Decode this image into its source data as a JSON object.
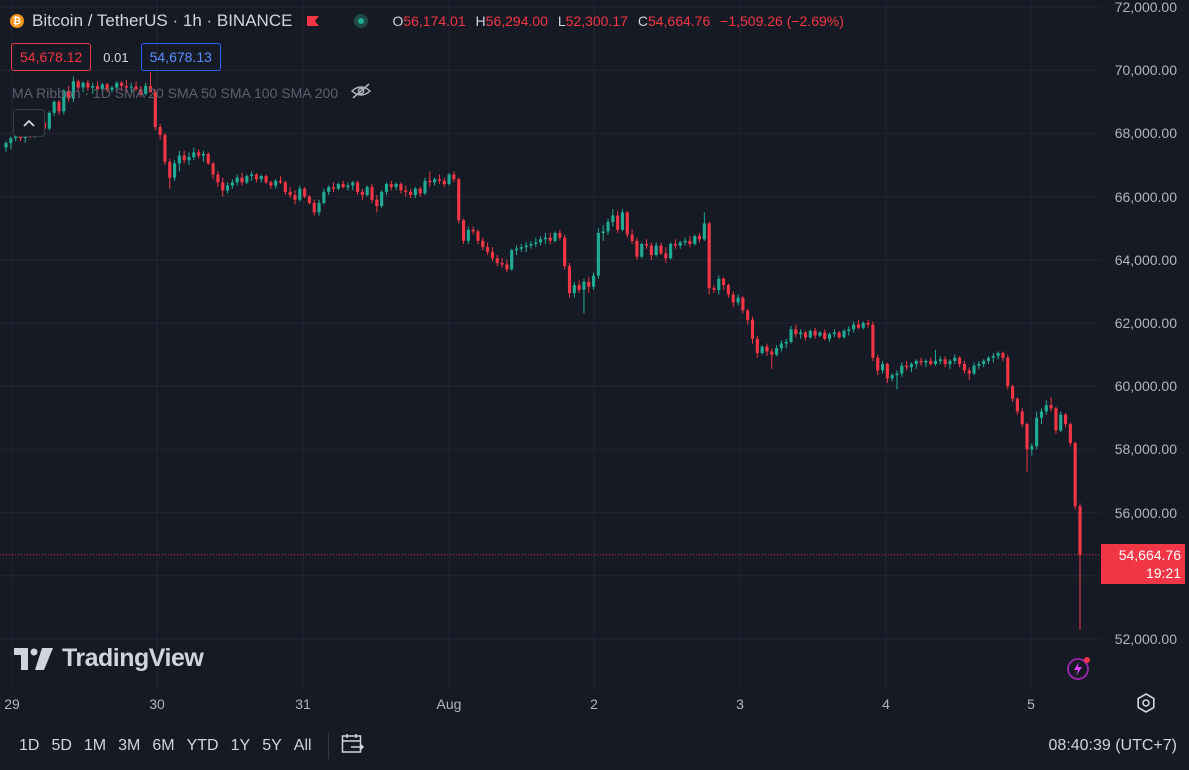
{
  "header": {
    "symbol_title": "Bitcoin / TetherUS · 1h · BINANCE",
    "open_label": "O",
    "open": "56,174.01",
    "high_label": "H",
    "high": "56,294.00",
    "low_label": "L",
    "low": "52,300.17",
    "close_label": "C",
    "close": "54,664.76",
    "change": "−1,509.26 (−2.69%)"
  },
  "trade": {
    "sell_price": "54,678.12",
    "spread": "0.01",
    "buy_price": "54,678.13"
  },
  "indicators": {
    "text": "MA Ribbon · 1D SMA 20 SMA 50 SMA 100 SMA 200"
  },
  "watermark": {
    "brand": "TradingView"
  },
  "current_price": {
    "value": "54,664.76",
    "countdown": "19:21"
  },
  "y_axis_labels": [
    "72,000.00",
    "70,000.00",
    "68,000.00",
    "66,000.00",
    "64,000.00",
    "62,000.00",
    "60,000.00",
    "58,000.00",
    "56,000.00",
    "52,000.00"
  ],
  "x_axis_labels": [
    "29",
    "30",
    "31",
    "Aug",
    "2",
    "3",
    "4",
    "5"
  ],
  "range_buttons": [
    "1D",
    "5D",
    "1M",
    "3M",
    "6M",
    "YTD",
    "1Y",
    "5Y",
    "All"
  ],
  "clock": "08:40:39 (UTC+7)",
  "colors": {
    "up": "#22ab94",
    "down": "#f23645",
    "background": "#161a25",
    "grid": "#232632"
  },
  "chart_data": {
    "type": "candlestick",
    "title": "Bitcoin / TetherUS · 1h · BINANCE",
    "xlabel": "",
    "ylabel": "",
    "ylim": [
      51000,
      72000
    ],
    "x_ticks": [
      "29",
      "30",
      "31",
      "Aug",
      "2",
      "3",
      "4",
      "5"
    ],
    "candles": [
      [
        67550,
        67750,
        67420,
        67700
      ],
      [
        67700,
        67900,
        67500,
        67850
      ],
      [
        67850,
        68150,
        67750,
        68100
      ],
      [
        68100,
        68150,
        67750,
        67850
      ],
      [
        67850,
        68050,
        67700,
        68000
      ],
      [
        68000,
        68200,
        67850,
        67950
      ],
      [
        67950,
        68350,
        67850,
        68300
      ],
      [
        68300,
        68500,
        68150,
        68350
      ],
      [
        68350,
        68400,
        68050,
        68150
      ],
      [
        68150,
        68700,
        68100,
        68650
      ],
      [
        68650,
        69050,
        68550,
        69000
      ],
      [
        69000,
        69050,
        68600,
        68700
      ],
      [
        68700,
        69400,
        68600,
        69350
      ],
      [
        69350,
        69500,
        69000,
        69100
      ],
      [
        69100,
        69800,
        69000,
        69650
      ],
      [
        69650,
        69700,
        69350,
        69450
      ],
      [
        69450,
        69650,
        69300,
        69600
      ],
      [
        69600,
        69700,
        69350,
        69450
      ],
      [
        69450,
        69600,
        69250,
        69500
      ],
      [
        69500,
        69650,
        69350,
        69400
      ],
      [
        69400,
        69600,
        69350,
        69550
      ],
      [
        69550,
        69600,
        69300,
        69380
      ],
      [
        69380,
        69500,
        69300,
        69450
      ],
      [
        69450,
        69650,
        69350,
        69600
      ],
      [
        69600,
        69650,
        69350,
        69500
      ],
      [
        69500,
        69700,
        69300,
        69450
      ],
      [
        69450,
        69600,
        69300,
        69480
      ],
      [
        69480,
        69650,
        69350,
        69400
      ],
      [
        69400,
        69500,
        69150,
        69250
      ],
      [
        69250,
        69600,
        69200,
        69500
      ],
      [
        69500,
        69950,
        69400,
        69300
      ],
      [
        69300,
        69400,
        68100,
        68200
      ],
      [
        68200,
        68300,
        67800,
        67950
      ],
      [
        67950,
        68000,
        67000,
        67100
      ],
      [
        67100,
        67200,
        66250,
        66600
      ],
      [
        66600,
        67150,
        66500,
        67050
      ],
      [
        67050,
        67450,
        66800,
        67300
      ],
      [
        67300,
        67450,
        67050,
        67150
      ],
      [
        67150,
        67400,
        67000,
        67250
      ],
      [
        67250,
        67550,
        67150,
        67400
      ],
      [
        67400,
        67500,
        67200,
        67300
      ],
      [
        67300,
        67450,
        67100,
        67350
      ],
      [
        67350,
        67400,
        67000,
        67050
      ],
      [
        67050,
        67100,
        66550,
        66700
      ],
      [
        66700,
        66800,
        66300,
        66450
      ],
      [
        66450,
        66600,
        66000,
        66200
      ],
      [
        66200,
        66450,
        66100,
        66350
      ],
      [
        66350,
        66550,
        66250,
        66450
      ],
      [
        66450,
        66700,
        66350,
        66600
      ],
      [
        66600,
        66750,
        66350,
        66450
      ],
      [
        66450,
        66700,
        66400,
        66650
      ],
      [
        66650,
        66800,
        66500,
        66700
      ],
      [
        66700,
        66750,
        66450,
        66550
      ],
      [
        66550,
        66700,
        66450,
        66650
      ],
      [
        66650,
        66700,
        66400,
        66450
      ],
      [
        66450,
        66500,
        66250,
        66350
      ],
      [
        66350,
        66550,
        66250,
        66500
      ],
      [
        66500,
        66650,
        66400,
        66450
      ],
      [
        66450,
        66500,
        66050,
        66150
      ],
      [
        66150,
        66300,
        65950,
        66050
      ],
      [
        66050,
        66200,
        65750,
        65900
      ],
      [
        65900,
        66350,
        65850,
        66250
      ],
      [
        66250,
        66300,
        65950,
        66000
      ],
      [
        66000,
        66050,
        65750,
        65800
      ],
      [
        65800,
        65900,
        65400,
        65500
      ],
      [
        65500,
        65900,
        65400,
        65800
      ],
      [
        65800,
        66250,
        65750,
        66150
      ],
      [
        66150,
        66350,
        66050,
        66300
      ],
      [
        66300,
        66450,
        66150,
        66250
      ],
      [
        66250,
        66450,
        66200,
        66400
      ],
      [
        66400,
        66500,
        66250,
        66300
      ],
      [
        66300,
        66450,
        66200,
        66350
      ],
      [
        66350,
        66500,
        66200,
        66450
      ],
      [
        66450,
        66500,
        66050,
        66150
      ],
      [
        66150,
        66250,
        65900,
        66050
      ],
      [
        66050,
        66350,
        66000,
        66300
      ],
      [
        66300,
        66400,
        65800,
        65900
      ],
      [
        65900,
        66050,
        65500,
        65700
      ],
      [
        65700,
        66200,
        65650,
        66150
      ],
      [
        66150,
        66450,
        66050,
        66400
      ],
      [
        66400,
        66500,
        66200,
        66300
      ],
      [
        66300,
        66450,
        66200,
        66400
      ],
      [
        66400,
        66450,
        66100,
        66200
      ],
      [
        66200,
        66350,
        66000,
        66150
      ],
      [
        66150,
        66250,
        65950,
        66050
      ],
      [
        66050,
        66300,
        65950,
        66250
      ],
      [
        66250,
        66300,
        66000,
        66100
      ],
      [
        66100,
        66600,
        66050,
        66500
      ],
      [
        66500,
        66800,
        66300,
        66450
      ],
      [
        66450,
        66600,
        66350,
        66550
      ],
      [
        66550,
        66700,
        66400,
        66500
      ],
      [
        66500,
        66600,
        66300,
        66400
      ],
      [
        66400,
        66750,
        66350,
        66700
      ],
      [
        66700,
        66800,
        66450,
        66550
      ],
      [
        66550,
        66600,
        65150,
        65250
      ],
      [
        65250,
        65300,
        64500,
        64600
      ],
      [
        64600,
        65050,
        64500,
        64950
      ],
      [
        64950,
        65050,
        64800,
        64900
      ],
      [
        64900,
        64950,
        64500,
        64600
      ],
      [
        64600,
        64700,
        64300,
        64400
      ],
      [
        64400,
        64550,
        64150,
        64250
      ],
      [
        64250,
        64400,
        63950,
        64050
      ],
      [
        64050,
        64150,
        63800,
        63900
      ],
      [
        63900,
        64050,
        63750,
        63850
      ],
      [
        63850,
        64000,
        63600,
        63700
      ],
      [
        63700,
        64350,
        63650,
        64300
      ],
      [
        64300,
        64450,
        64150,
        64350
      ],
      [
        64350,
        64500,
        64250,
        64400
      ],
      [
        64400,
        64550,
        64250,
        64450
      ],
      [
        64450,
        64600,
        64350,
        64500
      ],
      [
        64500,
        64700,
        64400,
        64550
      ],
      [
        64550,
        64750,
        64450,
        64650
      ],
      [
        64650,
        64850,
        64500,
        64700
      ],
      [
        64700,
        64850,
        64500,
        64600
      ],
      [
        64600,
        64900,
        64550,
        64850
      ],
      [
        64850,
        64950,
        64600,
        64700
      ],
      [
        64700,
        64800,
        63700,
        63800
      ],
      [
        63800,
        63900,
        62800,
        62950
      ],
      [
        62950,
        63300,
        62800,
        63200
      ],
      [
        63200,
        63350,
        62950,
        63050
      ],
      [
        63050,
        63400,
        62300,
        63300
      ],
      [
        63300,
        63450,
        62950,
        63150
      ],
      [
        63150,
        63600,
        63050,
        63500
      ],
      [
        63500,
        65000,
        63400,
        64850
      ],
      [
        64850,
        65100,
        64600,
        64900
      ],
      [
        64900,
        65300,
        64800,
        65200
      ],
      [
        65200,
        65600,
        65050,
        65400
      ],
      [
        65400,
        65550,
        64850,
        64950
      ],
      [
        64950,
        65600,
        64900,
        65500
      ],
      [
        65500,
        65550,
        64700,
        64800
      ],
      [
        64800,
        64950,
        64500,
        64600
      ],
      [
        64600,
        64700,
        64000,
        64100
      ],
      [
        64100,
        64550,
        64050,
        64500
      ],
      [
        64500,
        64650,
        64350,
        64450
      ],
      [
        64450,
        64550,
        64000,
        64150
      ],
      [
        64150,
        64550,
        64100,
        64450
      ],
      [
        64450,
        64550,
        64150,
        64200
      ],
      [
        64200,
        64400,
        63900,
        64050
      ],
      [
        64050,
        64550,
        64000,
        64500
      ],
      [
        64500,
        64650,
        64350,
        64450
      ],
      [
        64450,
        64600,
        64350,
        64550
      ],
      [
        64550,
        64700,
        64450,
        64600
      ],
      [
        64600,
        64750,
        64400,
        64500
      ],
      [
        64500,
        64800,
        64450,
        64750
      ],
      [
        64750,
        64850,
        64550,
        64650
      ],
      [
        64650,
        65500,
        64600,
        65150
      ],
      [
        65150,
        65200,
        62900,
        63100
      ],
      [
        63100,
        63200,
        62950,
        63050
      ],
      [
        63050,
        63500,
        62900,
        63400
      ],
      [
        63400,
        63450,
        63050,
        63200
      ],
      [
        63200,
        63250,
        62800,
        62900
      ],
      [
        62900,
        63000,
        62500,
        62650
      ],
      [
        62650,
        62900,
        62550,
        62800
      ],
      [
        62800,
        62850,
        62300,
        62400
      ],
      [
        62400,
        62450,
        61950,
        62100
      ],
      [
        62100,
        62200,
        61350,
        61500
      ],
      [
        61500,
        61600,
        60900,
        61050
      ],
      [
        61050,
        61300,
        61000,
        61250
      ],
      [
        61250,
        61350,
        60950,
        61100
      ],
      [
        61100,
        61200,
        60550,
        61000
      ],
      [
        61000,
        61300,
        60950,
        61200
      ],
      [
        61200,
        61450,
        61100,
        61350
      ],
      [
        61350,
        61500,
        61200,
        61400
      ],
      [
        61400,
        61900,
        61350,
        61800
      ],
      [
        61800,
        61950,
        61550,
        61650
      ],
      [
        61650,
        61800,
        61500,
        61700
      ],
      [
        61700,
        61750,
        61450,
        61550
      ],
      [
        61550,
        61800,
        61500,
        61750
      ],
      [
        61750,
        61850,
        61500,
        61600
      ],
      [
        61600,
        61750,
        61550,
        61700
      ],
      [
        61700,
        61800,
        61450,
        61500
      ],
      [
        61500,
        61700,
        61400,
        61650
      ],
      [
        61650,
        61800,
        61550,
        61700
      ],
      [
        61700,
        61750,
        61500,
        61550
      ],
      [
        61550,
        61800,
        61500,
        61750
      ],
      [
        61750,
        61900,
        61600,
        61800
      ],
      [
        61800,
        62050,
        61700,
        61950
      ],
      [
        61950,
        62100,
        61800,
        61850
      ],
      [
        61850,
        62050,
        61800,
        62000
      ],
      [
        62000,
        62100,
        61850,
        61950
      ],
      [
        61950,
        62050,
        60800,
        60900
      ],
      [
        60900,
        61000,
        60350,
        60500
      ],
      [
        60500,
        60800,
        60400,
        60700
      ],
      [
        60700,
        60750,
        60100,
        60250
      ],
      [
        60250,
        60400,
        60150,
        60350
      ],
      [
        60350,
        60500,
        59900,
        60400
      ],
      [
        60400,
        60750,
        60300,
        60650
      ],
      [
        60650,
        60800,
        60500,
        60600
      ],
      [
        60600,
        60750,
        60450,
        60700
      ],
      [
        60700,
        60850,
        60550,
        60800
      ],
      [
        60800,
        60900,
        60650,
        60750
      ],
      [
        60750,
        60850,
        60600,
        60800
      ],
      [
        60800,
        60900,
        60650,
        60700
      ],
      [
        60700,
        61150,
        60650,
        60800
      ],
      [
        60800,
        60950,
        60700,
        60850
      ],
      [
        60850,
        60950,
        60600,
        60700
      ],
      [
        60700,
        60850,
        60550,
        60800
      ],
      [
        60800,
        61000,
        60700,
        60900
      ],
      [
        60900,
        60950,
        60600,
        60700
      ],
      [
        60700,
        60800,
        60400,
        60500
      ],
      [
        60500,
        60600,
        60200,
        60400
      ],
      [
        60400,
        60750,
        60350,
        60650
      ],
      [
        60650,
        60800,
        60550,
        60700
      ],
      [
        60700,
        60850,
        60600,
        60800
      ],
      [
        60800,
        60950,
        60700,
        60900
      ],
      [
        60900,
        61050,
        60750,
        60950
      ],
      [
        60950,
        61100,
        60850,
        61050
      ],
      [
        61050,
        61100,
        60800,
        60900
      ],
      [
        60900,
        61000,
        59900,
        60000
      ],
      [
        60000,
        60050,
        59500,
        59600
      ],
      [
        59600,
        59650,
        59100,
        59200
      ],
      [
        59200,
        59300,
        58700,
        58800
      ],
      [
        58800,
        58850,
        57300,
        58000
      ],
      [
        58000,
        58200,
        57800,
        58100
      ],
      [
        58100,
        59200,
        58000,
        59000
      ],
      [
        59000,
        59300,
        58800,
        59200
      ],
      [
        59200,
        59550,
        59100,
        59400
      ],
      [
        59400,
        59650,
        59200,
        59300
      ],
      [
        59300,
        59350,
        58500,
        58600
      ],
      [
        58600,
        59200,
        58550,
        59100
      ],
      [
        59100,
        59150,
        58700,
        58800
      ],
      [
        58800,
        58850,
        58100,
        58200
      ],
      [
        58200,
        58250,
        56100,
        56200
      ],
      [
        56200,
        56294,
        52300,
        54665
      ]
    ]
  }
}
